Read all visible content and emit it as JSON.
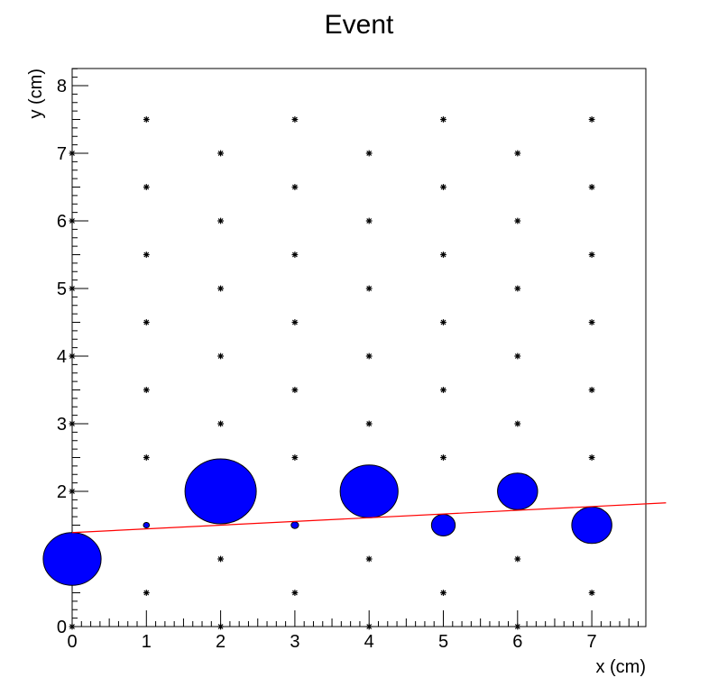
{
  "chart_data": {
    "type": "scatter",
    "title": "Event",
    "xlabel": "x (cm)",
    "ylabel": "y (cm)",
    "xlim": [
      0,
      7.75
    ],
    "ylim": [
      0,
      8.25
    ],
    "grid": false,
    "x_tick_labels": [
      "0",
      "1",
      "2",
      "3",
      "4",
      "5",
      "6",
      "7"
    ],
    "y_tick_labels": [
      "0",
      "1",
      "2",
      "3",
      "4",
      "5",
      "6",
      "7",
      "8"
    ],
    "series": [
      {
        "kind": "marker-grid",
        "marker": "asterisk",
        "color": "#000000",
        "points": [
          [
            0,
            0
          ],
          [
            2,
            0
          ],
          [
            4,
            0
          ],
          [
            6,
            0
          ],
          [
            1,
            0.5
          ],
          [
            3,
            0.5
          ],
          [
            5,
            0.5
          ],
          [
            7,
            0.5
          ],
          [
            0,
            1
          ],
          [
            2,
            1
          ],
          [
            4,
            1
          ],
          [
            6,
            1
          ],
          [
            1,
            1.5
          ],
          [
            3,
            1.5
          ],
          [
            5,
            1.5
          ],
          [
            7,
            1.5
          ],
          [
            0,
            2
          ],
          [
            2,
            2
          ],
          [
            4,
            2
          ],
          [
            6,
            2
          ],
          [
            1,
            2.5
          ],
          [
            3,
            2.5
          ],
          [
            5,
            2.5
          ],
          [
            7,
            2.5
          ],
          [
            0,
            3
          ],
          [
            2,
            3
          ],
          [
            4,
            3
          ],
          [
            6,
            3
          ],
          [
            1,
            3.5
          ],
          [
            3,
            3.5
          ],
          [
            5,
            3.5
          ],
          [
            7,
            3.5
          ],
          [
            0,
            4
          ],
          [
            2,
            4
          ],
          [
            4,
            4
          ],
          [
            6,
            4
          ],
          [
            1,
            4.5
          ],
          [
            3,
            4.5
          ],
          [
            5,
            4.5
          ],
          [
            7,
            4.5
          ],
          [
            0,
            5
          ],
          [
            2,
            5
          ],
          [
            4,
            5
          ],
          [
            6,
            5
          ],
          [
            1,
            5.5
          ],
          [
            3,
            5.5
          ],
          [
            5,
            5.5
          ],
          [
            7,
            5.5
          ],
          [
            0,
            6
          ],
          [
            2,
            6
          ],
          [
            4,
            6
          ],
          [
            6,
            6
          ],
          [
            1,
            6.5
          ],
          [
            3,
            6.5
          ],
          [
            5,
            6.5
          ],
          [
            7,
            6.5
          ],
          [
            0,
            7
          ],
          [
            2,
            7
          ],
          [
            4,
            7
          ],
          [
            6,
            7
          ],
          [
            1,
            7.5
          ],
          [
            3,
            7.5
          ],
          [
            5,
            7.5
          ],
          [
            7,
            7.5
          ]
        ]
      },
      {
        "kind": "hits",
        "color": "#0000ff",
        "points": [
          {
            "x": 0,
            "y": 1.0,
            "r": 0.39
          },
          {
            "x": 1,
            "y": 1.5,
            "r": 0.04
          },
          {
            "x": 2,
            "y": 2.0,
            "r": 0.48
          },
          {
            "x": 3,
            "y": 1.5,
            "r": 0.05
          },
          {
            "x": 4,
            "y": 2.0,
            "r": 0.39
          },
          {
            "x": 5,
            "y": 1.5,
            "r": 0.16
          },
          {
            "x": 6,
            "y": 2.0,
            "r": 0.27
          },
          {
            "x": 7,
            "y": 1.5,
            "r": 0.27
          }
        ]
      },
      {
        "kind": "fit-line",
        "color": "#ff0000",
        "x": [
          0,
          8.0
        ],
        "y": [
          1.39,
          1.83
        ]
      }
    ]
  }
}
